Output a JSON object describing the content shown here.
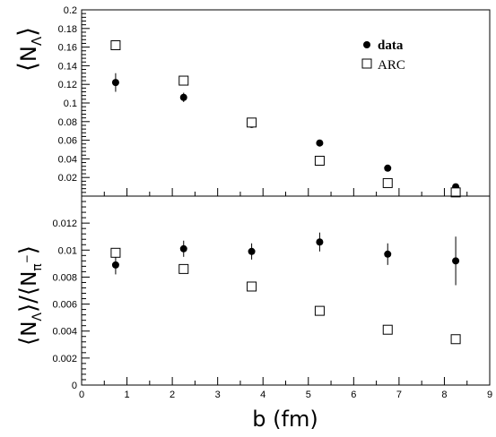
{
  "chart_data": [
    {
      "type": "scatter",
      "panel": "top",
      "ylabel_parts": [
        "N",
        "Λ"
      ],
      "xlim": [
        0,
        9
      ],
      "ylim": [
        0,
        0.2
      ],
      "yticks": [
        0.02,
        0.04,
        0.06,
        0.08,
        0.1,
        0.12,
        0.14,
        0.16,
        0.18,
        0.2
      ],
      "ytick_labels": [
        "0.02",
        "0.04",
        "0.06",
        "0.08",
        "0.1",
        "0.12",
        "0.14",
        "0.16",
        "0.18",
        "0.2"
      ],
      "grid": false,
      "legend_position": "top-right",
      "series": [
        {
          "name": "data",
          "marker": "filled-circle",
          "x": [
            0.75,
            2.25,
            3.75,
            5.25,
            6.75,
            8.25
          ],
          "y": [
            0.122,
            0.106,
            0.077,
            0.057,
            0.03,
            0.01
          ],
          "yerr": [
            0.01,
            0.005,
            0.003,
            0.003,
            0.002,
            0.002
          ]
        },
        {
          "name": "ARC",
          "marker": "open-square",
          "x": [
            0.75,
            2.25,
            3.75,
            5.25,
            6.75,
            8.25
          ],
          "y": [
            0.162,
            0.124,
            0.079,
            0.038,
            0.014,
            0.004
          ]
        }
      ]
    },
    {
      "type": "scatter",
      "panel": "bottom",
      "ylabel_parts": [
        "N",
        "Λ",
        "N",
        "π",
        "−"
      ],
      "xlabel": "b (fm)",
      "xlim": [
        0,
        9
      ],
      "ylim": [
        0,
        0.014
      ],
      "xticks": [
        0,
        1,
        2,
        3,
        4,
        5,
        6,
        7,
        8,
        9
      ],
      "xtick_labels": [
        "0",
        "1",
        "2",
        "3",
        "4",
        "5",
        "6",
        "7",
        "8",
        "9"
      ],
      "yticks": [
        0,
        0.002,
        0.004,
        0.006,
        0.008,
        0.01,
        0.012
      ],
      "ytick_labels": [
        "0",
        "0.002",
        "0.004",
        "0.006",
        "0.008",
        "0.01",
        "0.012"
      ],
      "grid": false,
      "series": [
        {
          "name": "data",
          "marker": "filled-circle",
          "x": [
            0.75,
            2.25,
            3.75,
            5.25,
            6.75,
            8.25
          ],
          "y": [
            0.0089,
            0.0101,
            0.0099,
            0.0106,
            0.0097,
            0.0092
          ],
          "yerr": [
            0.0007,
            0.0006,
            0.0006,
            0.0007,
            0.0008,
            0.0018
          ]
        },
        {
          "name": "ARC",
          "marker": "open-square",
          "x": [
            0.75,
            2.25,
            3.75,
            5.25,
            6.75,
            8.25
          ],
          "y": [
            0.0098,
            0.0086,
            0.0073,
            0.0055,
            0.0041,
            0.0034
          ]
        }
      ]
    }
  ],
  "legend": [
    {
      "label": "data",
      "marker": "filled-circle"
    },
    {
      "label": "ARC",
      "marker": "open-square"
    }
  ]
}
